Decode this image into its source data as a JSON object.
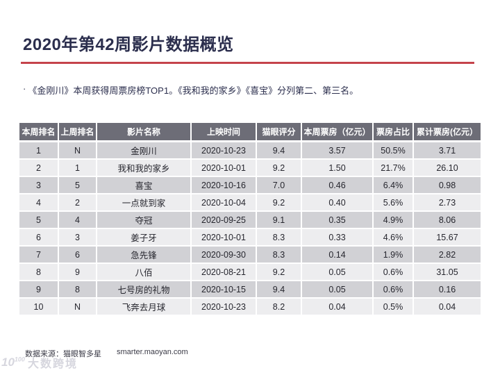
{
  "colors": {
    "accent_red": "#c5434b",
    "title_text": "#2b2e4d",
    "table_header_bg": "#6d6d77",
    "table_row_odd": "#d1d1d5",
    "table_row_even": "#ededef",
    "table_text": "#26262e"
  },
  "header": {
    "title": "2020年第42周影片数据概览"
  },
  "intro": {
    "marker": "·",
    "text": "《金刚川》本周获得周票房榜TOP1。《我和我的家乡》《喜宝》分列第二、第三名。"
  },
  "chart_data": {
    "type": "table",
    "title": "2020年第42周影片数据概览",
    "columns": [
      "本周排名",
      "上周排名",
      "影片名称",
      "上映时间",
      "猫眼评分",
      "本周票房（亿元）",
      "票房占比",
      "累计票房(亿元）"
    ],
    "rows": [
      [
        "1",
        "N",
        "金刚川",
        "2020-10-23",
        "9.4",
        "3.57",
        "50.5%",
        "3.71"
      ],
      [
        "2",
        "1",
        "我和我的家乡",
        "2020-10-01",
        "9.2",
        "1.50",
        "21.7%",
        "26.10"
      ],
      [
        "3",
        "5",
        "喜宝",
        "2020-10-16",
        "7.0",
        "0.46",
        "6.4%",
        "0.98"
      ],
      [
        "4",
        "2",
        "一点就到家",
        "2020-10-04",
        "9.2",
        "0.40",
        "5.6%",
        "2.73"
      ],
      [
        "5",
        "4",
        "夺冠",
        "2020-09-25",
        "9.1",
        "0.35",
        "4.9%",
        "8.06"
      ],
      [
        "6",
        "3",
        "姜子牙",
        "2020-10-01",
        "8.3",
        "0.33",
        "4.6%",
        "15.67"
      ],
      [
        "7",
        "6",
        "急先锋",
        "2020-09-30",
        "8.3",
        "0.14",
        "1.9%",
        "2.82"
      ],
      [
        "8",
        "9",
        "八佰",
        "2020-08-21",
        "9.2",
        "0.05",
        "0.6%",
        "31.05"
      ],
      [
        "9",
        "8",
        "七号房的礼物",
        "2020-10-15",
        "9.4",
        "0.05",
        "0.6%",
        "0.16"
      ],
      [
        "10",
        "N",
        "飞奔去月球",
        "2020-10-23",
        "8.2",
        "0.04",
        "0.5%",
        "0.04"
      ]
    ]
  },
  "footer": {
    "source_label": "数据来源：猫眼智多星",
    "source_url": "smarter.maoyan.com"
  },
  "watermark": {
    "logo_base": "10",
    "logo_sup": "100",
    "name": "大数跨境"
  }
}
